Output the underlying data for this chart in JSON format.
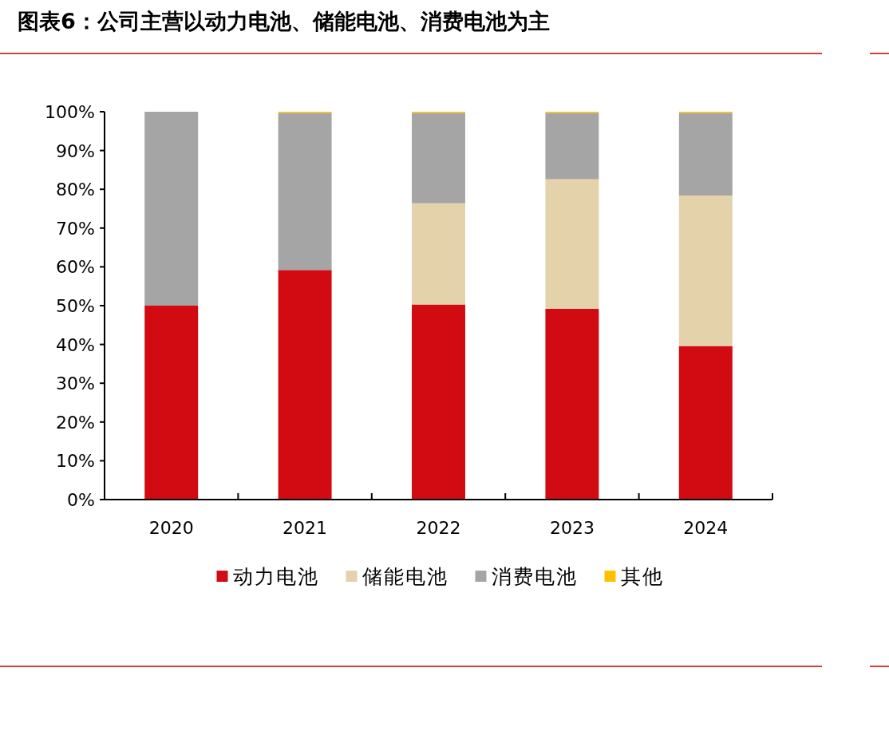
{
  "chart_data": {
    "type": "bar",
    "stacked": true,
    "title": "图表6：公司主营以动力电池、储能电池、消费电池为主",
    "categories": [
      "2020",
      "2021",
      "2022",
      "2023",
      "2024"
    ],
    "series": [
      {
        "name": "动力电池",
        "color": "#d20a11",
        "values": [
          50.0,
          59.2,
          50.3,
          49.2,
          39.6
        ]
      },
      {
        "name": "储能电池",
        "color": "#e3d2aa",
        "values": [
          0,
          0,
          26.1,
          33.4,
          38.8
        ]
      },
      {
        "name": "消费电池",
        "color": "#a5a5a5",
        "values": [
          50.0,
          40.5,
          23.3,
          17.1,
          21.3
        ]
      },
      {
        "name": "其他",
        "color": "#ffc000",
        "values": [
          0,
          0.3,
          0.3,
          0.3,
          0.3
        ]
      }
    ],
    "ylim": [
      0,
      100
    ],
    "yticks": [
      {
        "value": 0,
        "label": "0%"
      },
      {
        "value": 10,
        "label": "10%"
      },
      {
        "value": 20,
        "label": "20%"
      },
      {
        "value": 30,
        "label": "30%"
      },
      {
        "value": 40,
        "label": "40%"
      },
      {
        "value": 50,
        "label": "50%"
      },
      {
        "value": 60,
        "label": "60%"
      },
      {
        "value": 70,
        "label": "70%"
      },
      {
        "value": 80,
        "label": "80%"
      },
      {
        "value": 90,
        "label": "90%"
      },
      {
        "value": 100,
        "label": "100%"
      }
    ],
    "grid": false,
    "legend": "bottom"
  }
}
